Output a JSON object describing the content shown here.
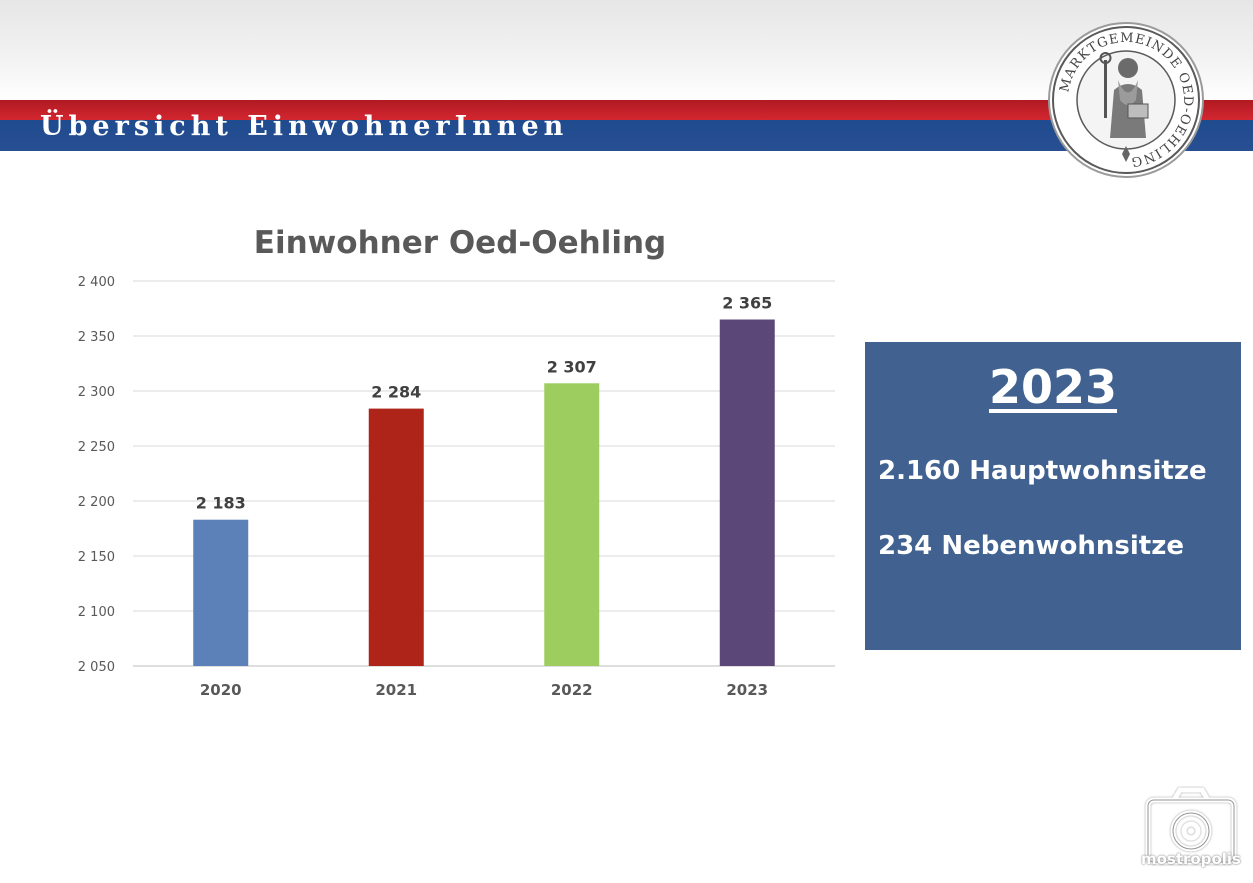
{
  "header": {
    "title": "Übersicht EinwohnerInnen",
    "seal_text": "MARKTGEMEINDE OED-OEHLING"
  },
  "chart_data": {
    "type": "bar",
    "title": "Einwohner Oed-Oehling",
    "categories": [
      "2020",
      "2021",
      "2022",
      "2023"
    ],
    "values": [
      2183,
      2284,
      2307,
      2365
    ],
    "value_labels": [
      "2 183",
      "2 284",
      "2 307",
      "2 365"
    ],
    "bar_colors": [
      "#5b81b8",
      "#ae2418",
      "#9dcd5e",
      "#5c4878"
    ],
    "ylim": [
      2050,
      2400
    ],
    "yticks": [
      2050,
      2100,
      2150,
      2200,
      2250,
      2300,
      2350,
      2400
    ],
    "ytick_labels": [
      "2 050",
      "2 100",
      "2 150",
      "2 200",
      "2 250",
      "2 300",
      "2 350",
      "2 400"
    ],
    "grid": true,
    "xlabel": "",
    "ylabel": ""
  },
  "info_box": {
    "year": "2023",
    "line1": "2.160 Hauptwohnsitze",
    "line2": "234 Nebenwohnsitze"
  },
  "watermark": {
    "text": "mostropolis",
    "icon": "camera-icon"
  },
  "colors": {
    "header_red": "#c8212b",
    "header_blue": "#254d91",
    "info_box": "#416290"
  }
}
